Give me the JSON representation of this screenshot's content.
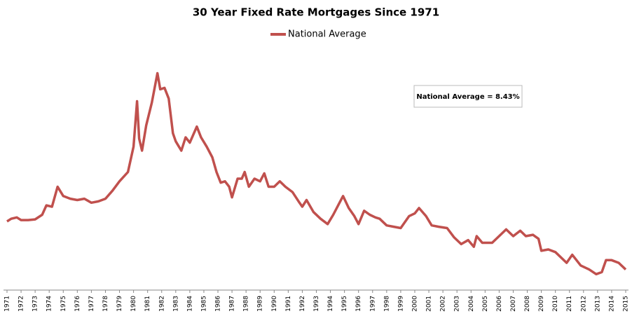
{
  "chart_data": {
    "type": "line",
    "title": "30 Year Fixed Rate Mortgages Since 1971",
    "annotation": "National Average  = 8.43%",
    "x": [
      1971.0,
      1971.3,
      1971.7,
      1972.0,
      1972.5,
      1973.0,
      1973.5,
      1973.8,
      1974.2,
      1974.6,
      1975.0,
      1975.5,
      1976.0,
      1976.5,
      1977.0,
      1977.5,
      1978.0,
      1978.5,
      1979.0,
      1979.6,
      1980.0,
      1980.25,
      1980.4,
      1980.6,
      1980.9,
      1981.3,
      1981.7,
      1981.9,
      1982.2,
      1982.5,
      1982.8,
      1983.0,
      1983.4,
      1983.7,
      1984.0,
      1984.5,
      1984.8,
      1985.2,
      1985.6,
      1985.9,
      1986.2,
      1986.5,
      1986.8,
      1987.0,
      1987.4,
      1987.7,
      1987.9,
      1988.2,
      1988.6,
      1989.0,
      1989.3,
      1989.6,
      1990.0,
      1990.4,
      1990.8,
      1991.3,
      1991.8,
      1992.0,
      1992.3,
      1992.8,
      1993.3,
      1993.8,
      1994.2,
      1994.6,
      1994.9,
      1995.3,
      1995.7,
      1996.0,
      1996.4,
      1996.8,
      1997.2,
      1997.5,
      1998.0,
      1998.5,
      1999.0,
      1999.6,
      2000.0,
      2000.3,
      2000.8,
      2001.2,
      2001.7,
      2002.3,
      2002.8,
      2003.3,
      2003.8,
      2004.2,
      2004.4,
      2004.8,
      2005.5,
      2005.9,
      2006.5,
      2007.0,
      2007.5,
      2007.9,
      2008.4,
      2008.8,
      2009.0,
      2009.5,
      2010.0,
      2010.8,
      2011.2,
      2011.8,
      2012.4,
      2012.9,
      2013.3,
      2013.6,
      2014.0,
      2014.5,
      2015.0
    ],
    "series": [
      {
        "name": "National Average",
        "color": "#c0504d",
        "values": [
          7.3,
          7.5,
          7.6,
          7.4,
          7.4,
          7.45,
          7.8,
          8.5,
          8.4,
          9.9,
          9.2,
          9.0,
          8.9,
          9.0,
          8.7,
          8.8,
          9.0,
          9.6,
          10.3,
          11.0,
          12.9,
          16.3,
          13.5,
          12.6,
          14.5,
          16.2,
          18.4,
          17.2,
          17.3,
          16.5,
          13.9,
          13.3,
          12.6,
          13.6,
          13.2,
          14.4,
          13.6,
          12.9,
          12.1,
          11.0,
          10.2,
          10.3,
          9.9,
          9.1,
          10.5,
          10.5,
          11.0,
          9.9,
          10.5,
          10.3,
          10.9,
          9.9,
          9.9,
          10.3,
          9.9,
          9.5,
          8.7,
          8.4,
          8.9,
          8.0,
          7.5,
          7.1,
          7.8,
          8.6,
          9.2,
          8.3,
          7.7,
          7.1,
          8.1,
          7.8,
          7.6,
          7.5,
          7.0,
          6.9,
          6.8,
          7.7,
          7.9,
          8.3,
          7.7,
          7.0,
          6.9,
          6.8,
          6.1,
          5.6,
          5.9,
          5.4,
          6.2,
          5.7,
          5.7,
          6.1,
          6.7,
          6.2,
          6.6,
          6.2,
          6.3,
          6.0,
          5.1,
          5.2,
          5.0,
          4.2,
          4.8,
          4.0,
          3.7,
          3.35,
          3.5,
          4.4,
          4.4,
          4.2,
          3.7
        ]
      }
    ],
    "xlim": [
      1971,
      2015
    ],
    "ylim": [
      2,
      20
    ],
    "xticks": [
      1971,
      1972,
      1973,
      1974,
      1975,
      1976,
      1977,
      1978,
      1979,
      1980,
      1981,
      1982,
      1983,
      1984,
      1985,
      1986,
      1987,
      1988,
      1989,
      1990,
      1991,
      1992,
      1993,
      1994,
      1995,
      1996,
      1997,
      1998,
      1999,
      2000,
      2001,
      2002,
      2003,
      2004,
      2005,
      2006,
      2007,
      2008,
      2009,
      2010,
      2011,
      2012,
      2013,
      2014,
      2015
    ],
    "grid": false
  }
}
